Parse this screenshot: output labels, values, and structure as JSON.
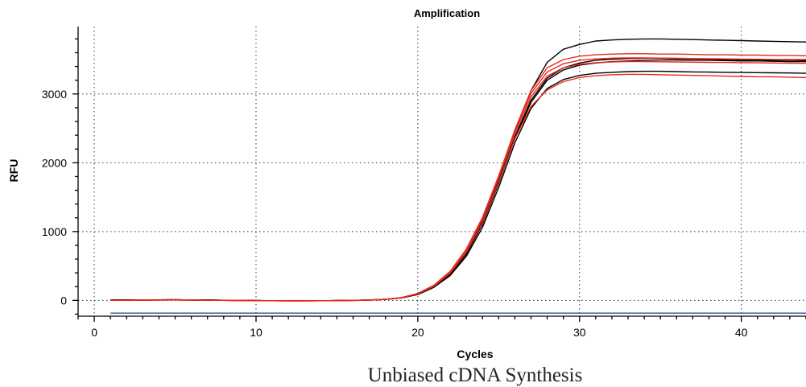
{
  "chart_data": {
    "type": "line",
    "title": "Amplification",
    "xlabel": "Cycles",
    "ylabel": "RFU",
    "caption": "Unbiased cDNA Synthesis",
    "xlim": [
      -1,
      44
    ],
    "ylim": [
      -230,
      3980
    ],
    "x_ticks": [
      0,
      10,
      20,
      30,
      40
    ],
    "y_ticks": [
      0,
      1000,
      2000,
      3000
    ],
    "grid": true,
    "x": [
      1,
      2,
      3,
      4,
      5,
      6,
      7,
      8,
      9,
      10,
      11,
      12,
      13,
      14,
      15,
      16,
      17,
      18,
      19,
      20,
      21,
      22,
      23,
      24,
      25,
      26,
      27,
      28,
      29,
      30,
      31,
      32,
      33,
      34,
      35,
      36,
      37,
      38,
      39,
      40,
      41,
      42,
      43,
      44
    ],
    "series": [
      {
        "color": "#000000",
        "values": [
          5,
          6,
          7,
          7,
          8,
          6,
          4,
          2,
          0,
          -3,
          -5,
          -6,
          -6,
          -5,
          -3,
          0,
          5,
          15,
          40,
          95,
          210,
          400,
          700,
          1150,
          1750,
          2450,
          3050,
          3460,
          3650,
          3720,
          3770,
          3785,
          3795,
          3800,
          3800,
          3795,
          3790,
          3785,
          3780,
          3775,
          3770,
          3765,
          3760,
          3755
        ]
      },
      {
        "color": "#000000",
        "values": [
          5,
          6,
          7,
          7,
          8,
          6,
          4,
          2,
          0,
          -3,
          -5,
          -6,
          -6,
          -5,
          -3,
          0,
          5,
          15,
          38,
          90,
          200,
          380,
          670,
          1110,
          1700,
          2350,
          2880,
          3200,
          3350,
          3420,
          3450,
          3470,
          3480,
          3490,
          3495,
          3495,
          3490,
          3490,
          3485,
          3480,
          3480,
          3475,
          3470,
          3470
        ]
      },
      {
        "color": "#000000",
        "values": [
          5,
          6,
          7,
          7,
          8,
          6,
          4,
          2,
          0,
          -3,
          -5,
          -6,
          -6,
          -5,
          -3,
          0,
          5,
          15,
          38,
          90,
          200,
          380,
          680,
          1120,
          1720,
          2380,
          2910,
          3230,
          3380,
          3450,
          3490,
          3505,
          3515,
          3520,
          3520,
          3515,
          3510,
          3505,
          3500,
          3495,
          3495,
          3490,
          3490,
          3485
        ]
      },
      {
        "color": "#000000",
        "values": [
          5,
          6,
          7,
          7,
          8,
          6,
          4,
          2,
          0,
          -3,
          -5,
          -6,
          -6,
          -5,
          -3,
          0,
          5,
          14,
          36,
          85,
          190,
          360,
          640,
          1060,
          1640,
          2290,
          2790,
          3080,
          3210,
          3270,
          3300,
          3315,
          3325,
          3330,
          3330,
          3325,
          3320,
          3318,
          3315,
          3312,
          3310,
          3308,
          3305,
          3300
        ]
      },
      {
        "color": "#e8291c",
        "values": [
          0,
          2,
          4,
          5,
          6,
          4,
          2,
          0,
          -2,
          -4,
          -6,
          -7,
          -7,
          -6,
          -4,
          -1,
          4,
          14,
          40,
          100,
          220,
          420,
          740,
          1200,
          1800,
          2480,
          3050,
          3380,
          3500,
          3550,
          3570,
          3580,
          3585,
          3585,
          3580,
          3580,
          3575,
          3570,
          3570,
          3565,
          3565,
          3560,
          3560,
          3555
        ]
      },
      {
        "color": "#e8291c",
        "values": [
          0,
          2,
          4,
          5,
          6,
          4,
          2,
          0,
          -2,
          -4,
          -6,
          -7,
          -7,
          -6,
          -4,
          -1,
          4,
          14,
          40,
          100,
          220,
          420,
          745,
          1205,
          1810,
          2470,
          3010,
          3320,
          3440,
          3490,
          3510,
          3520,
          3525,
          3525,
          3522,
          3520,
          3515,
          3512,
          3510,
          3508,
          3505,
          3502,
          3500,
          3500
        ]
      },
      {
        "color": "#e8291c",
        "values": [
          0,
          2,
          4,
          5,
          6,
          4,
          2,
          0,
          -2,
          -4,
          -6,
          -7,
          -7,
          -6,
          -4,
          -1,
          4,
          14,
          40,
          100,
          215,
          415,
          730,
          1180,
          1780,
          2430,
          2960,
          3260,
          3380,
          3430,
          3455,
          3465,
          3470,
          3470,
          3468,
          3465,
          3462,
          3460,
          3458,
          3455,
          3452,
          3450,
          3448,
          3445
        ]
      },
      {
        "color": "#e8291c",
        "values": [
          0,
          2,
          4,
          5,
          6,
          4,
          2,
          0,
          -2,
          -4,
          -6,
          -7,
          -7,
          -6,
          -4,
          -1,
          4,
          14,
          38,
          95,
          205,
          395,
          700,
          1130,
          1720,
          2350,
          2820,
          3060,
          3180,
          3240,
          3265,
          3280,
          3285,
          3285,
          3280,
          3275,
          3270,
          3265,
          3260,
          3255,
          3250,
          3250,
          3245,
          3240
        ]
      },
      {
        "color": "#2b4f9a",
        "values": [
          -185,
          -185,
          -185,
          -185,
          -185,
          -185,
          -185,
          -185,
          -185,
          -185,
          -185,
          -185,
          -185,
          -185,
          -185,
          -185,
          -185,
          -185,
          -185,
          -185,
          -185,
          -185,
          -185,
          -185,
          -185,
          -185,
          -185,
          -185,
          -185,
          -185,
          -185,
          -185,
          -185,
          -185,
          -185,
          -185,
          -185,
          -185,
          -185,
          -185,
          -185,
          -185,
          -185,
          -185
        ]
      }
    ]
  }
}
